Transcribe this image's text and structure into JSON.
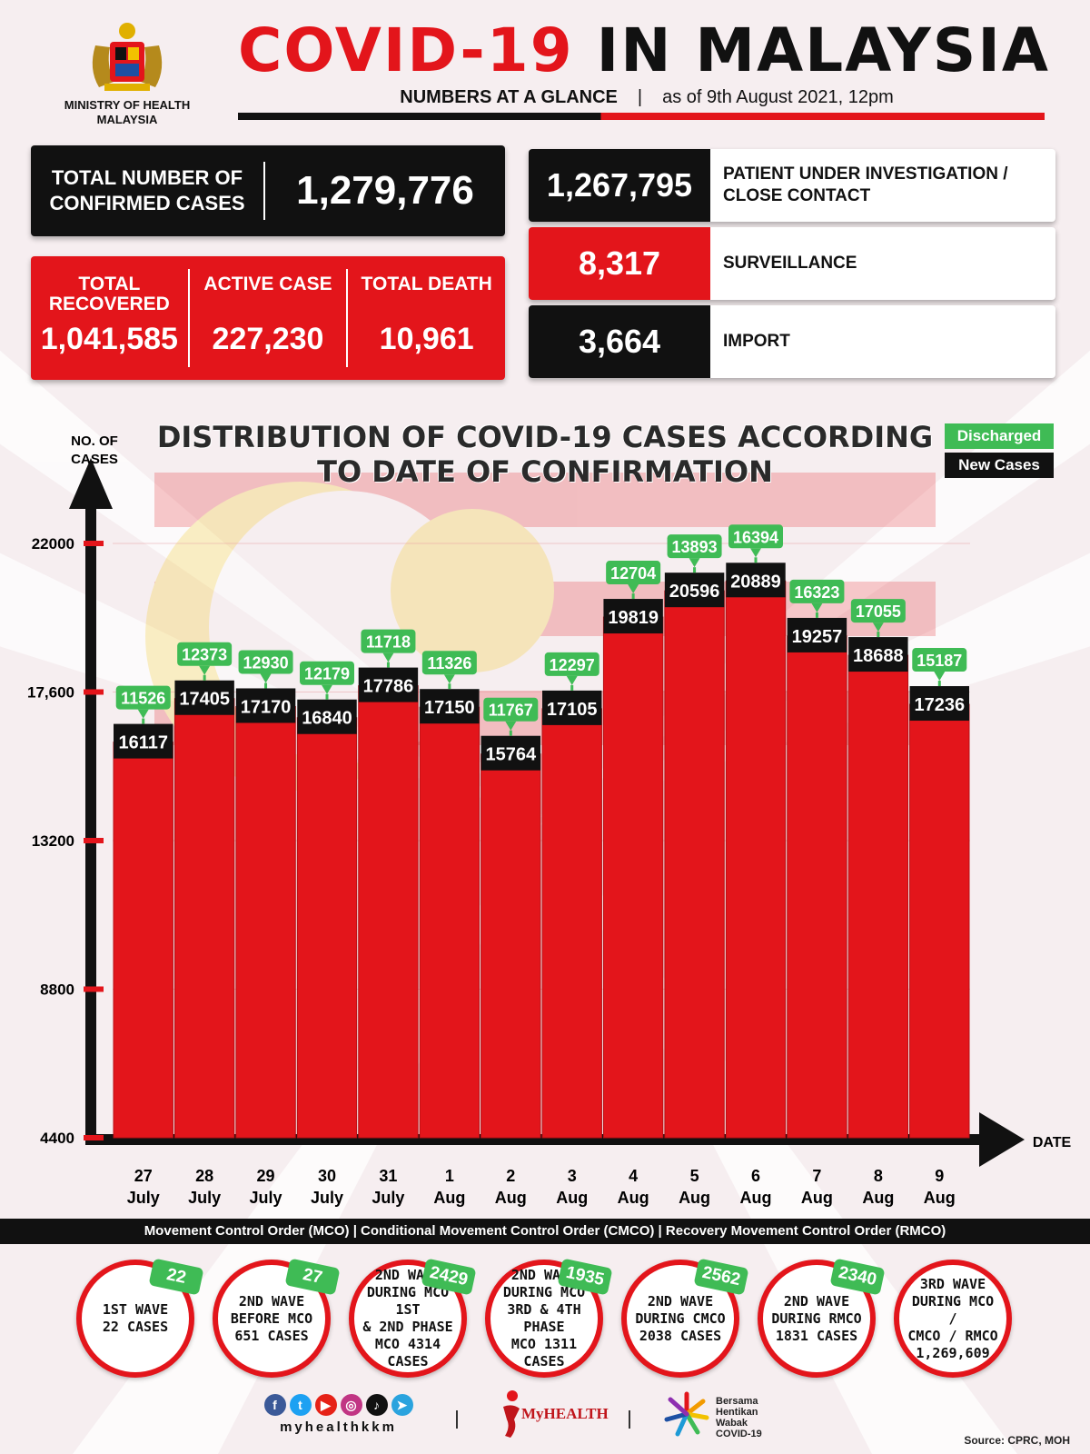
{
  "header": {
    "ministry": "MINISTRY OF HEALTH\nMALAYSIA",
    "title_red": "COVID-19",
    "title_black": "IN MALAYSIA",
    "subtitle_main": "NUMBERS AT A GLANCE",
    "subtitle_sep": "|",
    "subtitle_date": "as of 9th August 2021, 12pm"
  },
  "totals": {
    "confirmed_label": "TOTAL NUMBER OF CONFIRMED CASES",
    "confirmed_value": "1,279,776",
    "recovered_label": "TOTAL RECOVERED",
    "recovered_value": "1,041,585",
    "active_label": "ACTIVE CASE",
    "active_value": "227,230",
    "death_label": "TOTAL DEATH",
    "death_value": "10,961"
  },
  "sources": [
    {
      "value": "1,267,795",
      "label": "PATIENT UNDER INVESTIGATION / CLOSE CONTACT",
      "color": "#111111"
    },
    {
      "value": "8,317",
      "label": "SURVEILLANCE",
      "color": "#e3151b"
    },
    {
      "value": "3,664",
      "label": "IMPORT",
      "color": "#111111"
    }
  ],
  "chart_data": {
    "type": "bar",
    "title": "DISTRIBUTION OF COVID-19 CASES ACCORDING TO DATE OF CONFIRMATION",
    "ylabel": "NO. OF CASES",
    "xlabel": "DATE",
    "ylim": [
      4400,
      22000
    ],
    "yticks": [
      4400,
      8800,
      13200,
      17600,
      22000
    ],
    "ytick_labels": [
      "4400",
      "8800",
      "13200",
      "17,600",
      "22000"
    ],
    "categories": [
      [
        "27",
        "July"
      ],
      [
        "28",
        "July"
      ],
      [
        "29",
        "July"
      ],
      [
        "30",
        "July"
      ],
      [
        "31",
        "July"
      ],
      [
        "1",
        "Aug"
      ],
      [
        "2",
        "Aug"
      ],
      [
        "3",
        "Aug"
      ],
      [
        "4",
        "Aug"
      ],
      [
        "5",
        "Aug"
      ],
      [
        "6",
        "Aug"
      ],
      [
        "7",
        "Aug"
      ],
      [
        "8",
        "Aug"
      ],
      [
        "9",
        "Aug"
      ]
    ],
    "series": [
      {
        "name": "New Cases",
        "color": "#111111",
        "values": [
          16117,
          17405,
          17170,
          16840,
          17786,
          17150,
          15764,
          17105,
          19819,
          20596,
          20889,
          19257,
          18688,
          17236
        ]
      },
      {
        "name": "Discharged",
        "color": "#3fbb55",
        "values": [
          11526,
          12373,
          12930,
          12179,
          11718,
          11326,
          11767,
          12297,
          12704,
          13893,
          16394,
          16323,
          17055,
          15187
        ]
      }
    ],
    "bar_color": "#e3151b",
    "legend": "top-right"
  },
  "phases": {
    "banner": "Movement Control Order (MCO) | Conditional Movement Control Order (CMCO) | Recovery Movement Control Order (RMCO)",
    "waves": [
      {
        "text": "1ST WAVE\n22 CASES",
        "badge": "22"
      },
      {
        "text": "2ND WAVE\nBEFORE MCO\n651 CASES",
        "badge": "27"
      },
      {
        "text": "2ND WAVE\nDURING MCO 1ST\n& 2ND PHASE\nMCO 4314\nCASES",
        "badge": "2429"
      },
      {
        "text": "2ND WAVE\nDURING MCO\n3RD & 4TH PHASE\nMCO 1311\nCASES",
        "badge": "1935"
      },
      {
        "text": "2ND WAVE\nDURING CMCO\n2038 CASES",
        "badge": "2562"
      },
      {
        "text": "2ND WAVE\nDURING RMCO\n1831 CASES",
        "badge": "2340"
      },
      {
        "text": "3RD WAVE\nDURING MCO /\nCMCO / RMCO\n1,269,609",
        "badge": ""
      }
    ]
  },
  "footer": {
    "handle": "myhealthkkm",
    "social_icons": [
      "facebook-icon",
      "twitter-icon",
      "youtube-icon",
      "instagram-icon",
      "tiktok-icon",
      "telegram-icon"
    ],
    "myhealth_label": "MyHEALTH",
    "bersama_label": "Bersama\nHentikan\nWabak\nCOVID-19",
    "source": "Source: CPRC, MOH"
  }
}
